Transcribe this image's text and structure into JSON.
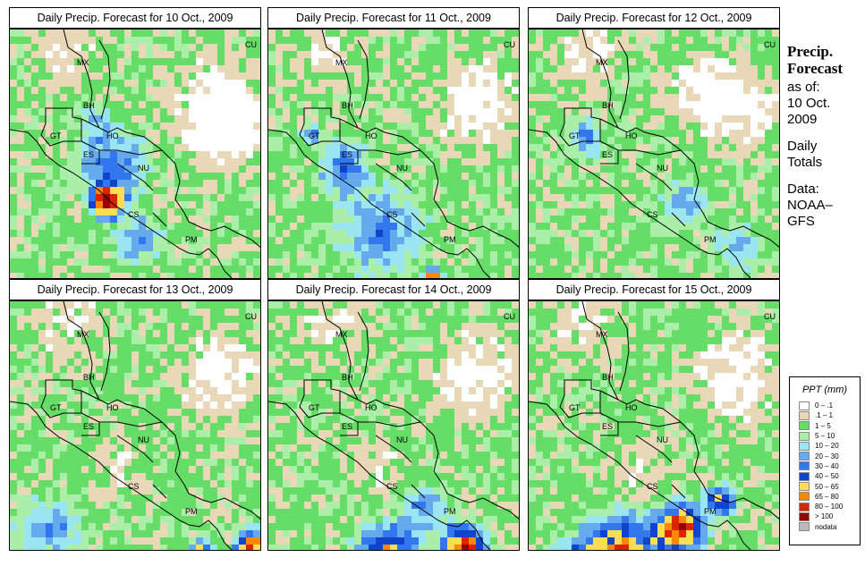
{
  "panels": [
    {
      "title": "Daily Precip. Forecast for  10 Oct., 2009",
      "day": "10 Oct."
    },
    {
      "title": "Daily Precip. Forecast for  11 Oct., 2009",
      "day": "11 Oct."
    },
    {
      "title": "Daily Precip. Forecast for  12 Oct., 2009",
      "day": "12 Oct."
    },
    {
      "title": "Daily Precip. Forecast for  13 Oct., 2009",
      "day": "13 Oct."
    },
    {
      "title": "Daily Precip. Forecast for  14 Oct., 2009",
      "day": "14 Oct."
    },
    {
      "title": "Daily Precip. Forecast for  15 Oct., 2009",
      "day": "15 Oct."
    }
  ],
  "country_labels": [
    "MX",
    "BH",
    "GT",
    "HO",
    "ES",
    "NU",
    "CS",
    "PM",
    "CU"
  ],
  "side": {
    "title1": "Precip.",
    "title2": "Forecast",
    "asof": "as of:",
    "date1": "10 Oct.",
    "date2": "2009",
    "daily1": "Daily",
    "daily2": "Totals",
    "data1": "Data:",
    "data2": "NOAA–",
    "data3": "GFS"
  },
  "legend": {
    "title": "PPT (mm)",
    "items": [
      {
        "label": "0 – .1",
        "color": "#ffffff"
      },
      {
        "label": ".1 – 1",
        "color": "#e8d8b8"
      },
      {
        "label": "1 – 5",
        "color": "#66dd66"
      },
      {
        "label": "5 – 10",
        "color": "#aaeeaa"
      },
      {
        "label": "10 – 20",
        "color": "#99e6f2"
      },
      {
        "label": "20 – 30",
        "color": "#66aaee"
      },
      {
        "label": "30 – 40",
        "color": "#3377ee"
      },
      {
        "label": "40 – 50",
        "color": "#1144cc"
      },
      {
        "label": "50 – 65",
        "color": "#ffdd55"
      },
      {
        "label": "65 – 80",
        "color": "#ff8800"
      },
      {
        "label": "80 – 100",
        "color": "#dd2200"
      },
      {
        "label": "> 100",
        "color": "#990000"
      },
      {
        "label": "nodata",
        "color": "#bbbbbb"
      }
    ]
  }
}
